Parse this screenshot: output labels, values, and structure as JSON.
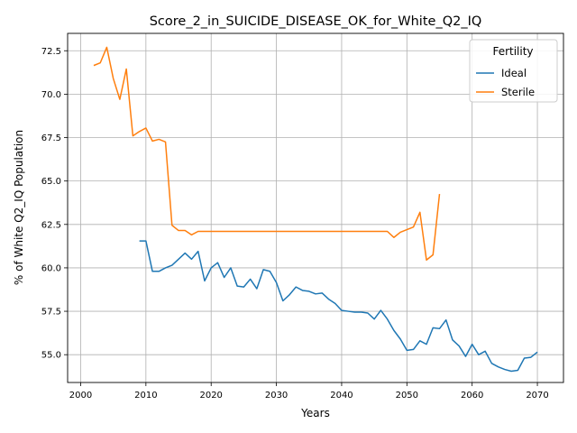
{
  "chart_data": {
    "type": "line",
    "title": "Score_2_in_SUICIDE_DISEASE_OK_for_White_Q2_IQ",
    "xlabel": "Years",
    "ylabel": "% of White Q2_IQ Population",
    "xlim": [
      1998,
      2074
    ],
    "ylim": [
      53.4,
      73.5
    ],
    "xticks": [
      2000,
      2010,
      2020,
      2030,
      2040,
      2050,
      2060,
      2070
    ],
    "yticks": [
      55.0,
      57.5,
      60.0,
      62.5,
      65.0,
      67.5,
      70.0,
      72.5
    ],
    "xtick_labels": [
      "2000",
      "2010",
      "2020",
      "2030",
      "2040",
      "2050",
      "2060",
      "2070"
    ],
    "ytick_labels": [
      "55.0",
      "57.5",
      "60.0",
      "62.5",
      "65.0",
      "67.5",
      "70.0",
      "72.5"
    ],
    "grid": true,
    "legend": {
      "title": "Fertility",
      "position": "top-right"
    },
    "series": [
      {
        "name": "Ideal",
        "color": "#1f77b4",
        "x": [
          2009,
          2010,
          2011,
          2012,
          2013,
          2014,
          2015,
          2016,
          2017,
          2018,
          2019,
          2020,
          2021,
          2022,
          2023,
          2024,
          2025,
          2026,
          2027,
          2028,
          2029,
          2030,
          2031,
          2032,
          2033,
          2034,
          2035,
          2036,
          2037,
          2038,
          2039,
          2040,
          2041,
          2042,
          2043,
          2044,
          2045,
          2046,
          2047,
          2048,
          2049,
          2050,
          2051,
          2052,
          2053,
          2054,
          2055,
          2056,
          2057,
          2058,
          2059,
          2060,
          2061,
          2062,
          2063,
          2064,
          2065,
          2066,
          2067,
          2068,
          2069,
          2070
        ],
        "y": [
          61.55,
          61.55,
          59.8,
          59.8,
          60.0,
          60.15,
          60.5,
          60.85,
          60.5,
          60.95,
          59.25,
          60.0,
          60.3,
          59.45,
          60.0,
          58.95,
          58.9,
          59.35,
          58.8,
          59.9,
          59.8,
          59.15,
          58.1,
          58.45,
          58.9,
          58.7,
          58.65,
          58.5,
          58.55,
          58.2,
          57.95,
          57.55,
          57.5,
          57.45,
          57.45,
          57.4,
          57.05,
          57.55,
          57.05,
          56.4,
          55.9,
          55.25,
          55.3,
          55.8,
          55.6,
          56.55,
          56.5,
          57.0,
          55.85,
          55.5,
          54.9,
          55.6,
          55.0,
          55.2,
          54.5,
          54.3,
          54.15,
          54.05,
          54.1,
          54.8,
          54.85,
          55.15
        ]
      },
      {
        "name": "Sterile",
        "color": "#ff7f0e",
        "x": [
          2002,
          2003,
          2004,
          2005,
          2006,
          2007,
          2008,
          2009,
          2010,
          2011,
          2012,
          2013,
          2014,
          2015,
          2016,
          2017,
          2018,
          2019,
          2020,
          2021,
          2022,
          2023,
          2024,
          2025,
          2026,
          2027,
          2028,
          2029,
          2030,
          2031,
          2032,
          2033,
          2034,
          2035,
          2036,
          2037,
          2038,
          2039,
          2040,
          2041,
          2042,
          2043,
          2044,
          2045,
          2046,
          2047,
          2048,
          2049,
          2050,
          2051,
          2052,
          2053,
          2054,
          2055
        ],
        "y": [
          71.65,
          71.8,
          72.7,
          70.9,
          69.7,
          71.45,
          67.6,
          67.85,
          68.05,
          67.3,
          67.4,
          67.25,
          62.45,
          62.15,
          62.15,
          61.9,
          62.1,
          62.1,
          62.1,
          62.1,
          62.1,
          62.1,
          62.1,
          62.1,
          62.1,
          62.1,
          62.1,
          62.1,
          62.1,
          62.1,
          62.1,
          62.1,
          62.1,
          62.1,
          62.1,
          62.1,
          62.1,
          62.1,
          62.1,
          62.1,
          62.1,
          62.1,
          62.1,
          62.1,
          62.1,
          62.1,
          61.75,
          62.05,
          62.2,
          62.35,
          63.2,
          60.45,
          60.75,
          64.25
        ]
      }
    ]
  }
}
